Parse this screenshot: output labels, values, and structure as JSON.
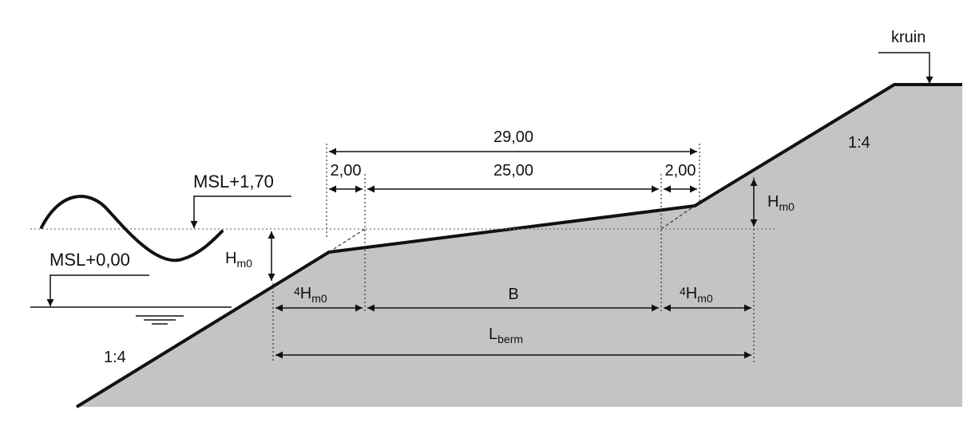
{
  "labels": {
    "crest": "kruin",
    "slope_lower": "1:4",
    "slope_upper": "1:4",
    "design_level": "MSL+1,70",
    "mean_level": "MSL+0,00",
    "dim_total": "29,00",
    "dim_left": "2,00",
    "dim_mid": "25,00",
    "dim_right": "2,00",
    "hm0_main": "H",
    "hm0_sub": "m0",
    "four": "4",
    "berm_width": "B",
    "lberm_main": "L",
    "lberm_sub": "berm"
  }
}
